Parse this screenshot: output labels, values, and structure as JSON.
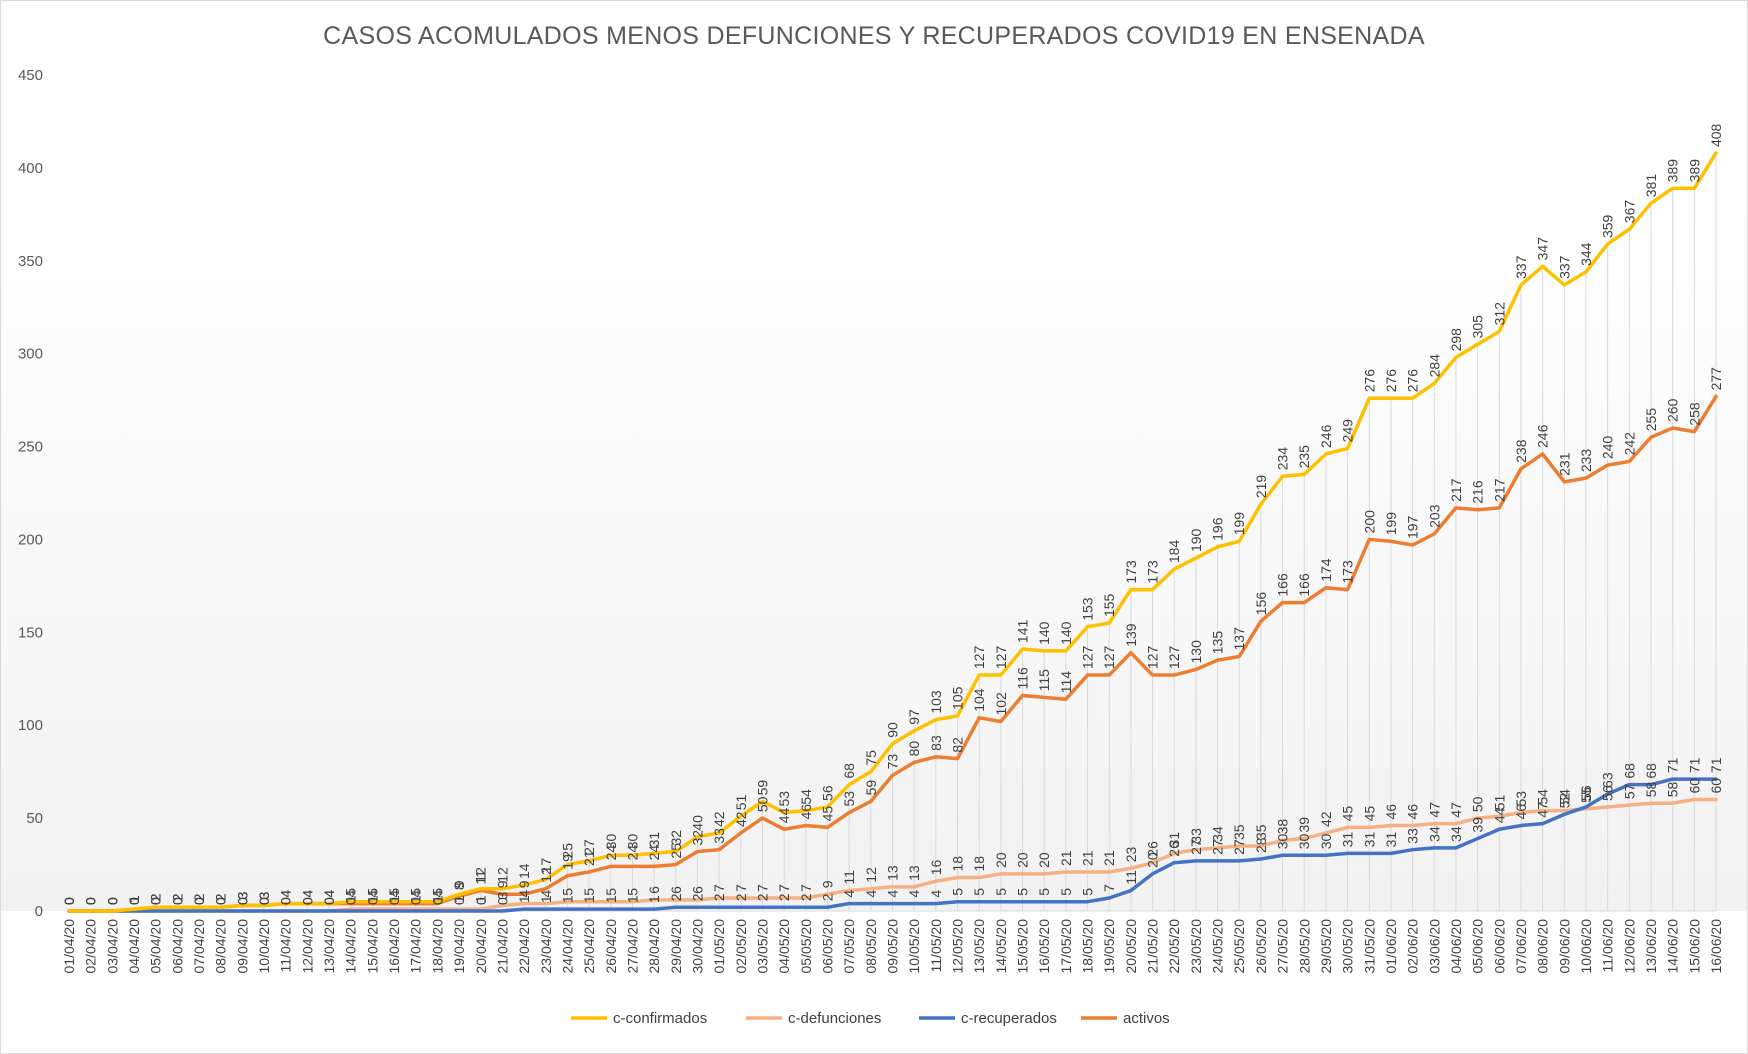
{
  "chart_data": {
    "type": "line",
    "title": "CASOS ACOMULADOS  MENOS DEFUNCIONES  Y RECUPERADOS  COVID19  EN ENSENADA",
    "xlabel": "",
    "ylabel": "",
    "ylim": [
      0,
      450
    ],
    "yticks": [
      0,
      50,
      100,
      150,
      200,
      250,
      300,
      350,
      400,
      450
    ],
    "grid": "vertical drop lines per category",
    "legend_position": "bottom",
    "categories": [
      "01/04/20",
      "02/04/20",
      "03/04/20",
      "04/04/20",
      "05/04/20",
      "06/04/20",
      "07/04/20",
      "08/04/20",
      "09/04/20",
      "10/04/20",
      "11/04/20",
      "12/04/20",
      "13/04/20",
      "14/04/20",
      "15/04/20",
      "16/04/20",
      "17/04/20",
      "18/04/20",
      "19/04/20",
      "20/04/20",
      "21/04/20",
      "22/04/20",
      "23/04/20",
      "24/04/20",
      "25/04/20",
      "26/04/20",
      "27/04/20",
      "28/04/20",
      "29/04/20",
      "30/04/20",
      "01/05/20",
      "02/05/20",
      "03/05/20",
      "04/05/20",
      "05/05/20",
      "06/05/20",
      "07/05/20",
      "08/05/20",
      "09/05/20",
      "10/05/20",
      "11/05/20",
      "12/05/20",
      "13/05/20",
      "14/05/20",
      "15/05/20",
      "16/05/20",
      "17/05/20",
      "18/05/20",
      "19/05/20",
      "20/05/20",
      "21/05/20",
      "22/05/20",
      "23/05/20",
      "24/05/20",
      "25/05/20",
      "26/05/20",
      "27/05/20",
      "28/05/20",
      "29/05/20",
      "30/05/20",
      "31/05/20",
      "01/06/20",
      "02/06/20",
      "03/06/20",
      "04/06/20",
      "05/06/20",
      "06/06/20",
      "07/06/20",
      "08/06/20",
      "09/06/20",
      "10/06/20",
      "11/06/20",
      "12/06/20",
      "13/06/20",
      "14/06/20",
      "15/06/20",
      "16/06/20"
    ],
    "series": [
      {
        "name": "c-confirmados",
        "color": "#FFC000",
        "values": [
          0,
          0,
          0,
          1,
          2,
          2,
          2,
          2,
          3,
          3,
          4,
          4,
          4,
          5,
          5,
          5,
          5,
          5,
          9,
          12,
          12,
          14,
          17,
          25,
          27,
          30,
          30,
          31,
          32,
          40,
          42,
          51,
          59,
          53,
          54,
          56,
          68,
          75,
          90,
          97,
          103,
          105,
          127,
          127,
          141,
          140,
          140,
          153,
          155,
          173,
          173,
          184,
          190,
          196,
          199,
          219,
          234,
          235,
          246,
          249,
          276,
          276,
          276,
          284,
          298,
          305,
          312,
          337,
          347,
          337,
          344,
          359,
          367,
          381,
          389,
          389,
          408
        ]
      },
      {
        "name": "c-defunciones",
        "color": "#F4B183",
        "values": [
          0,
          0,
          0,
          0,
          0,
          0,
          0,
          0,
          0,
          0,
          0,
          0,
          0,
          1,
          1,
          1,
          1,
          1,
          1,
          1,
          3,
          4,
          4,
          5,
          5,
          5,
          5,
          6,
          6,
          6,
          7,
          7,
          7,
          7,
          7,
          9,
          11,
          12,
          13,
          13,
          16,
          18,
          18,
          20,
          20,
          20,
          21,
          21,
          21,
          23,
          26,
          31,
          33,
          34,
          35,
          35,
          38,
          39,
          42,
          45,
          45,
          46,
          46,
          47,
          47,
          50,
          51,
          53,
          54,
          54,
          55,
          56,
          57,
          58,
          58,
          60,
          60
        ]
      },
      {
        "name": "c-recuperados",
        "color": "#4472C4",
        "values": [
          0,
          0,
          0,
          0,
          0,
          0,
          0,
          0,
          0,
          0,
          0,
          0,
          0,
          0,
          0,
          0,
          0,
          0,
          0,
          0,
          0,
          1,
          1,
          1,
          1,
          1,
          1,
          1,
          2,
          2,
          2,
          2,
          2,
          2,
          2,
          2,
          4,
          4,
          4,
          4,
          4,
          5,
          5,
          5,
          5,
          5,
          5,
          5,
          7,
          11,
          20,
          26,
          27,
          27,
          27,
          28,
          30,
          30,
          30,
          31,
          31,
          31,
          33,
          34,
          34,
          39,
          44,
          46,
          47,
          52,
          56,
          63,
          68,
          68,
          71,
          71,
          71
        ]
      },
      {
        "name": "activos",
        "color": "#ED7D31",
        "values": [
          0,
          0,
          0,
          1,
          2,
          2,
          2,
          2,
          3,
          3,
          4,
          4,
          4,
          4,
          4,
          4,
          4,
          4,
          8,
          11,
          9,
          9,
          12,
          19,
          21,
          24,
          24,
          24,
          25,
          32,
          33,
          42,
          50,
          44,
          46,
          45,
          53,
          59,
          73,
          80,
          83,
          82,
          104,
          102,
          116,
          115,
          114,
          127,
          127,
          139,
          127,
          127,
          130,
          135,
          137,
          156,
          166,
          166,
          174,
          173,
          200,
          199,
          197,
          203,
          217,
          216,
          217,
          238,
          246,
          231,
          233,
          240,
          242,
          255,
          260,
          258,
          277
        ]
      }
    ]
  }
}
